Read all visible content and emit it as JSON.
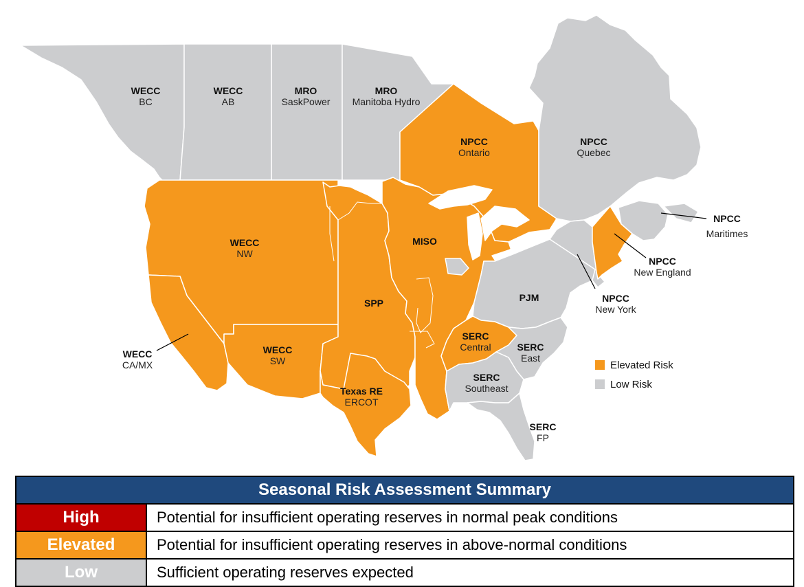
{
  "colors": {
    "elevated": "#f5981d",
    "low": "#cccdcf",
    "high": "#c00000",
    "header": "#1f497d",
    "border": "#ffffff"
  },
  "regions": [
    {
      "id": "wecc-bc",
      "name": "WECC",
      "sub": "BC",
      "risk": "low"
    },
    {
      "id": "wecc-ab",
      "name": "WECC",
      "sub": "AB",
      "risk": "low"
    },
    {
      "id": "mro-saskpower",
      "name": "MRO",
      "sub": "SaskPower",
      "risk": "low"
    },
    {
      "id": "mro-manitoba-hydro",
      "name": "MRO",
      "sub": "Manitoba Hydro",
      "risk": "low"
    },
    {
      "id": "npcc-ontario",
      "name": "NPCC",
      "sub": "Ontario",
      "risk": "elevated"
    },
    {
      "id": "npcc-quebec",
      "name": "NPCC",
      "sub": "Quebec",
      "risk": "low"
    },
    {
      "id": "npcc-maritimes",
      "name": "NPCC",
      "sub": "Maritimes",
      "risk": "low"
    },
    {
      "id": "npcc-new-england",
      "name": "NPCC",
      "sub": "New England",
      "risk": "elevated"
    },
    {
      "id": "npcc-new-york",
      "name": "NPCC",
      "sub": "New York",
      "risk": "low"
    },
    {
      "id": "wecc-nw",
      "name": "WECC",
      "sub": "NW",
      "risk": "elevated"
    },
    {
      "id": "miso",
      "name": "MISO",
      "sub": "",
      "risk": "elevated"
    },
    {
      "id": "spp",
      "name": "SPP",
      "sub": "",
      "risk": "elevated"
    },
    {
      "id": "pjm",
      "name": "PJM",
      "sub": "",
      "risk": "low"
    },
    {
      "id": "wecc-ca-mx",
      "name": "WECC",
      "sub": "CA/MX",
      "risk": "elevated"
    },
    {
      "id": "wecc-sw",
      "name": "WECC",
      "sub": "SW",
      "risk": "elevated"
    },
    {
      "id": "serc-central",
      "name": "SERC",
      "sub": "Central",
      "risk": "elevated"
    },
    {
      "id": "serc-east",
      "name": "SERC",
      "sub": "East",
      "risk": "low"
    },
    {
      "id": "serc-southeast",
      "name": "SERC",
      "sub": "Southeast",
      "risk": "low"
    },
    {
      "id": "texas-re-ercot",
      "name": "Texas RE",
      "sub": "ERCOT",
      "risk": "elevated"
    },
    {
      "id": "serc-fp",
      "name": "SERC",
      "sub": "FP",
      "risk": "low"
    }
  ],
  "legend": {
    "elevated_label": "Elevated Risk",
    "low_label": "Low Risk"
  },
  "summary": {
    "title": "Seasonal Risk Assessment Summary",
    "rows": [
      {
        "level": "High",
        "description": "Potential for insufficient operating reserves in normal peak conditions"
      },
      {
        "level": "Elevated",
        "description": "Potential for insufficient operating reserves in above-normal conditions"
      },
      {
        "level": "Low",
        "description": "Sufficient operating reserves expected"
      }
    ]
  }
}
